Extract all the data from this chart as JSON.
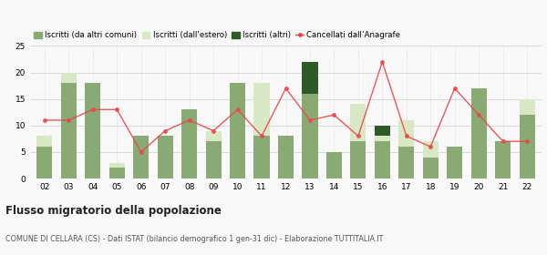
{
  "years": [
    "02",
    "03",
    "04",
    "05",
    "06",
    "07",
    "08",
    "09",
    "10",
    "11",
    "12",
    "13",
    "14",
    "15",
    "16",
    "17",
    "18",
    "19",
    "20",
    "21",
    "22"
  ],
  "iscritti_comuni": [
    6,
    18,
    18,
    2,
    8,
    8,
    13,
    7,
    18,
    8,
    8,
    16,
    5,
    7,
    7,
    6,
    4,
    6,
    17,
    7,
    12
  ],
  "iscritti_estero": [
    2,
    2,
    0,
    1,
    0,
    0,
    0,
    2,
    0,
    10,
    0,
    0,
    0,
    7,
    1,
    5,
    3,
    0,
    0,
    0,
    3
  ],
  "iscritti_altri": [
    0,
    0,
    0,
    0,
    0,
    0,
    0,
    0,
    0,
    0,
    0,
    6,
    0,
    0,
    2,
    0,
    0,
    0,
    0,
    0,
    0
  ],
  "cancellati": [
    11,
    11,
    13,
    13,
    5,
    9,
    11,
    9,
    13,
    8,
    17,
    11,
    12,
    8,
    22,
    8,
    6,
    17,
    12,
    7,
    7
  ],
  "color_comuni": "#8aaa74",
  "color_estero": "#d9e8c4",
  "color_altri": "#2d5a27",
  "color_cancellati": "#e8474a",
  "title": "Flusso migratorio della popolazione",
  "subtitle": "COMUNE DI CELLARA (CS) - Dati ISTAT (bilancio demografico 1 gen-31 dic) - Elaborazione TUTTITALIA.IT",
  "legend_labels": [
    "Iscritti (da altri comuni)",
    "Iscritti (dall'estero)",
    "Iscritti (altri)",
    "Cancellati dall’Anagrafe"
  ],
  "ylim": [
    0,
    25
  ],
  "yticks": [
    0,
    5,
    10,
    15,
    20,
    25
  ],
  "background_color": "#f8f8f8"
}
